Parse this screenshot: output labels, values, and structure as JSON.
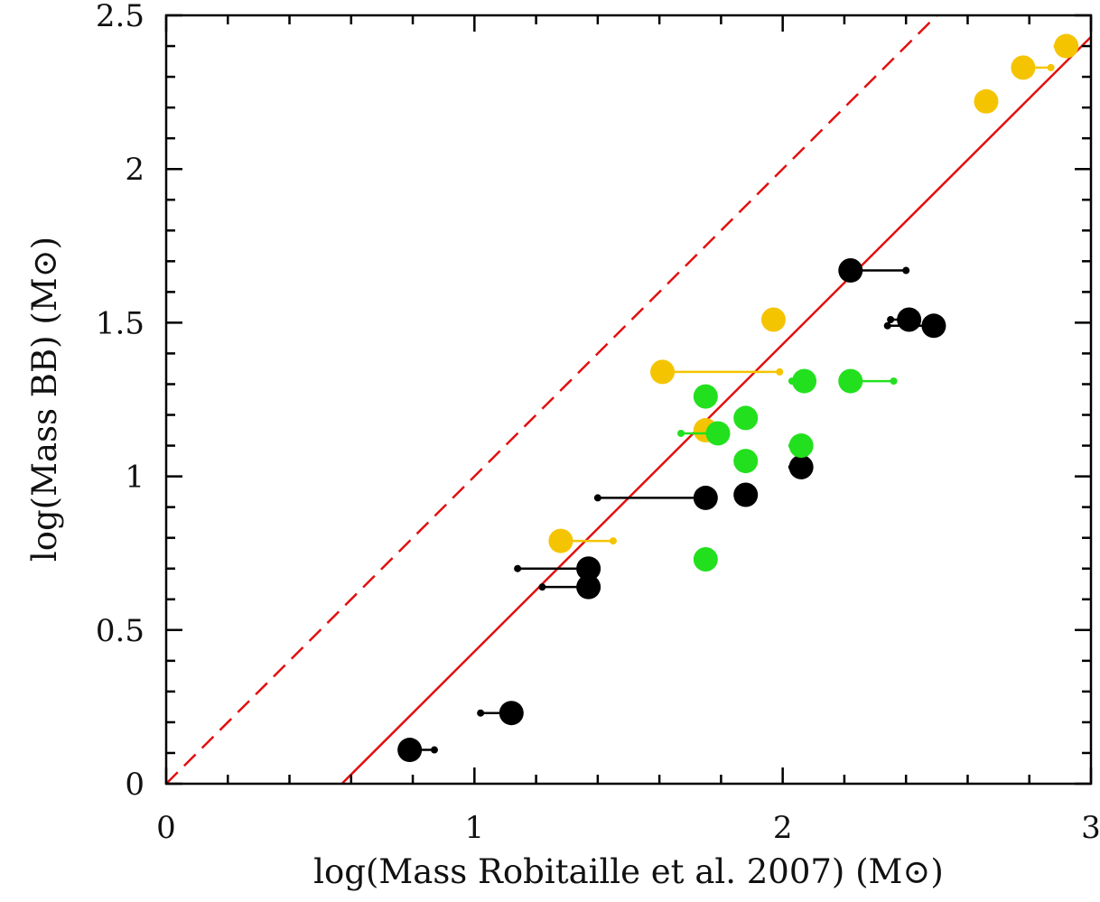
{
  "chart_data": {
    "type": "scatter",
    "title": "",
    "xlabel": "log(Mass Robitaille et al. 2007) (M⊙)",
    "ylabel": "log(Mass BB) (M⊙)",
    "xlim": [
      0,
      3
    ],
    "ylim": [
      0,
      2.5
    ],
    "x_ticks": [
      "0",
      "1",
      "2",
      "3"
    ],
    "y_ticks": [
      "0",
      "0.5",
      "1",
      "1.5",
      "2",
      "2.5"
    ],
    "grid": false,
    "legend": "none",
    "colors": {
      "black": "#000000",
      "yellow": "#f5c400",
      "green": "#22e01e",
      "line": "#e30f0f"
    },
    "lines": [
      {
        "style": "solid",
        "points": [
          [
            0.57,
            0
          ],
          [
            3.0,
            2.43
          ]
        ]
      },
      {
        "style": "dashed",
        "points": [
          [
            0.0,
            0
          ],
          [
            2.5,
            2.5
          ]
        ]
      }
    ],
    "points": [
      {
        "color": "black",
        "x": 0.79,
        "y": 0.11,
        "x_end": 0.87
      },
      {
        "color": "black",
        "x": 1.12,
        "y": 0.23,
        "x_end": 1.02
      },
      {
        "color": "black",
        "x": 1.37,
        "y": 0.7,
        "x_end": 1.14
      },
      {
        "color": "black",
        "x": 1.37,
        "y": 0.64,
        "x_end": 1.22
      },
      {
        "color": "black",
        "x": 1.75,
        "y": 0.93,
        "x_end": 1.4
      },
      {
        "color": "black",
        "x": 1.88,
        "y": 0.94
      },
      {
        "color": "black",
        "x": 2.06,
        "y": 1.03,
        "x_end": 2.03
      },
      {
        "color": "black",
        "x": 2.22,
        "y": 1.67,
        "x_end": 2.4
      },
      {
        "color": "black",
        "x": 2.41,
        "y": 1.51,
        "x_end": 2.35
      },
      {
        "color": "black",
        "x": 2.49,
        "y": 1.49,
        "x_end": 2.34
      },
      {
        "color": "yellow",
        "x": 1.28,
        "y": 0.79,
        "x_end": 1.45
      },
      {
        "color": "yellow",
        "x": 1.61,
        "y": 1.34,
        "x_end": 1.99
      },
      {
        "color": "yellow",
        "x": 1.75,
        "y": 1.15
      },
      {
        "color": "yellow",
        "x": 1.97,
        "y": 1.51
      },
      {
        "color": "yellow",
        "x": 2.66,
        "y": 2.22
      },
      {
        "color": "yellow",
        "x": 2.78,
        "y": 2.33,
        "x_end": 2.87
      },
      {
        "color": "yellow",
        "x": 2.92,
        "y": 2.4,
        "x_end": 2.89
      },
      {
        "color": "green",
        "x": 1.75,
        "y": 1.26
      },
      {
        "color": "green",
        "x": 1.79,
        "y": 1.14,
        "x_end": 1.67
      },
      {
        "color": "green",
        "x": 1.88,
        "y": 1.19
      },
      {
        "color": "green",
        "x": 1.88,
        "y": 1.05
      },
      {
        "color": "green",
        "x": 1.75,
        "y": 0.73
      },
      {
        "color": "green",
        "x": 2.07,
        "y": 1.31,
        "x_end": 2.03
      },
      {
        "color": "green",
        "x": 2.06,
        "y": 1.1,
        "x_end": 2.03
      },
      {
        "color": "green",
        "x": 2.22,
        "y": 1.31,
        "x_end": 2.36
      }
    ]
  }
}
